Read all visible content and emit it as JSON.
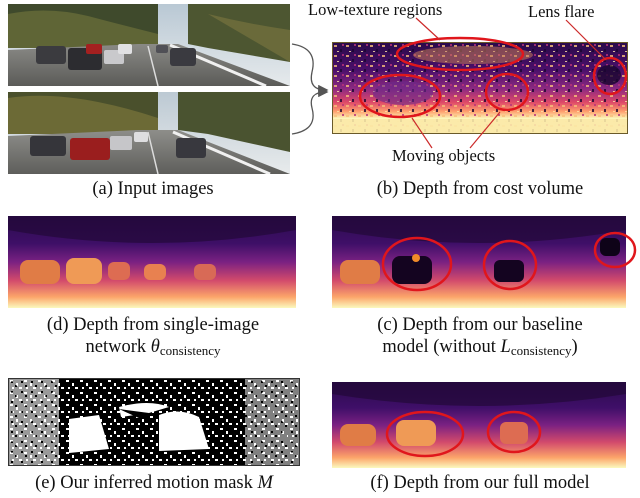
{
  "figure": {
    "captions": {
      "a": "(a) Input images",
      "b": "(b) Depth from cost volume",
      "d_line1": "(d) Depth from single-image",
      "d_line2_prefix": "network ",
      "d_line2_symbol": "θ",
      "d_line2_sub": "consistency",
      "c_line1": "(c) Depth from our baseline",
      "c_line2_prefix": "model (without ",
      "c_line2_symbol": "L",
      "c_line2_sub": "consistency",
      "c_line2_suffix": ")",
      "e_prefix": "(e) Our inferred motion mask ",
      "e_symbol": "M",
      "f": "(f) Depth from our full model"
    },
    "annotations": {
      "low_texture": "Low-texture regions",
      "lens_flare": "Lens flare",
      "moving_objects": "Moving objects"
    },
    "colors": {
      "highlight_ellipse": "#e0161c",
      "pointer_line": "#cc2a2a",
      "arrow": "#555555"
    }
  }
}
